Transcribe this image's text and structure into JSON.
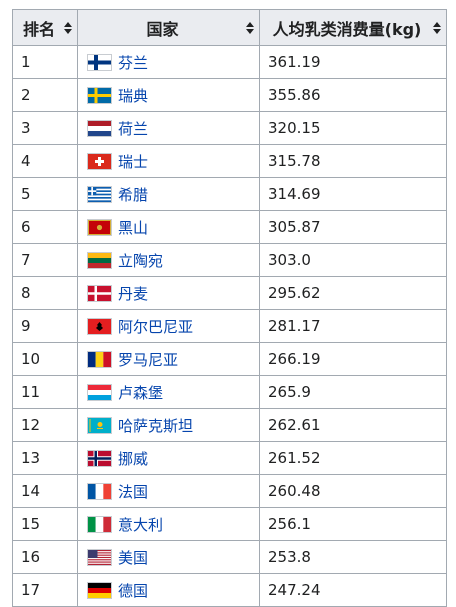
{
  "table": {
    "headers": {
      "rank": "排名",
      "country": "国家",
      "value": "人均乳类消费量(kg)"
    },
    "rows": [
      {
        "rank": "1",
        "country": "芬兰",
        "flag": "finland-flag",
        "value": "361.19"
      },
      {
        "rank": "2",
        "country": "瑞典",
        "flag": "sweden-flag",
        "value": "355.86"
      },
      {
        "rank": "3",
        "country": "荷兰",
        "flag": "netherlands-flag",
        "value": "320.15"
      },
      {
        "rank": "4",
        "country": "瑞士",
        "flag": "switzerland-flag",
        "value": "315.78"
      },
      {
        "rank": "5",
        "country": "希腊",
        "flag": "greece-flag",
        "value": "314.69"
      },
      {
        "rank": "6",
        "country": "黑山",
        "flag": "montenegro-flag",
        "value": "305.87"
      },
      {
        "rank": "7",
        "country": "立陶宛",
        "flag": "lithuania-flag",
        "value": "303.0"
      },
      {
        "rank": "8",
        "country": "丹麦",
        "flag": "denmark-flag",
        "value": "295.62"
      },
      {
        "rank": "9",
        "country": "阿尔巴尼亚",
        "flag": "albania-flag",
        "value": "281.17"
      },
      {
        "rank": "10",
        "country": "罗马尼亚",
        "flag": "romania-flag",
        "value": "266.19"
      },
      {
        "rank": "11",
        "country": "卢森堡",
        "flag": "luxembourg-flag",
        "value": "265.9"
      },
      {
        "rank": "12",
        "country": "哈萨克斯坦",
        "flag": "kazakhstan-flag",
        "value": "262.61"
      },
      {
        "rank": "13",
        "country": "挪威",
        "flag": "norway-flag",
        "value": "261.52"
      },
      {
        "rank": "14",
        "country": "法国",
        "flag": "france-flag",
        "value": "260.48"
      },
      {
        "rank": "15",
        "country": "意大利",
        "flag": "italy-flag",
        "value": "256.1"
      },
      {
        "rank": "16",
        "country": "美国",
        "flag": "usa-flag",
        "value": "253.8"
      },
      {
        "rank": "17",
        "country": "德国",
        "flag": "germany-flag",
        "value": "247.24"
      }
    ]
  },
  "colors": {
    "header_bg": "#eaecf0",
    "border": "#a2a9b1",
    "link": "#0645ad",
    "text": "#202122"
  }
}
